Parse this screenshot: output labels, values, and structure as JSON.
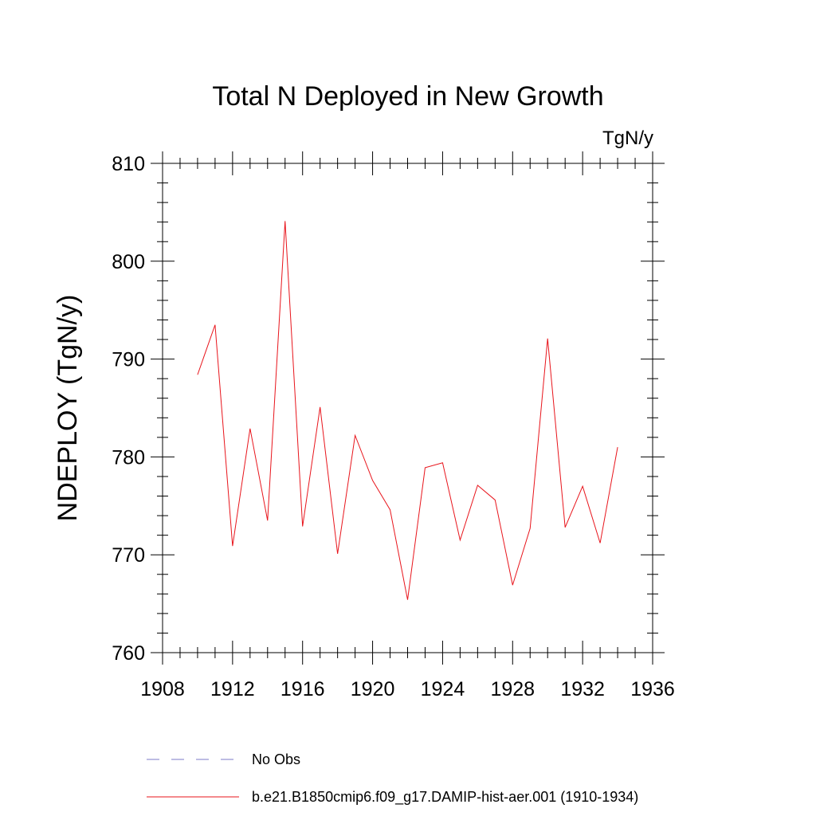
{
  "chart_data": {
    "type": "line",
    "title": "Total N Deployed in New Growth",
    "units_label": "TgN/y",
    "ylabel": "NDEPLOY  (TgN/y)",
    "xlabel": "",
    "xlim": [
      1908,
      1936
    ],
    "ylim": [
      760,
      810
    ],
    "x_ticks": [
      1908,
      1912,
      1916,
      1920,
      1924,
      1928,
      1932,
      1936
    ],
    "y_ticks": [
      760,
      770,
      780,
      790,
      800,
      810
    ],
    "grid": false,
    "legend_placement": "bottom",
    "legend": [
      {
        "label": "No Obs",
        "style": "dashed",
        "color": "#7b78c8"
      },
      {
        "label": "b.e21.B1850cmip6.f09_g17.DAMIP-hist-aer.001 (1910-1934)",
        "style": "solid",
        "color": "#e8141b"
      }
    ],
    "series": [
      {
        "color": "#e8141b",
        "x": [
          1910,
          1911,
          1912,
          1913,
          1914,
          1915,
          1916,
          1917,
          1918,
          1919,
          1920,
          1921,
          1922,
          1923,
          1924,
          1925,
          1926,
          1927,
          1928,
          1929,
          1930,
          1931,
          1932,
          1933,
          1934
        ],
        "values": [
          788.4,
          793.5,
          770.9,
          782.9,
          773.5,
          804.1,
          772.9,
          785.1,
          770.1,
          782.2,
          777.6,
          774.6,
          765.4,
          778.9,
          779.4,
          771.5,
          777.1,
          775.6,
          766.9,
          772.7,
          792.1,
          772.8,
          777.0,
          771.2,
          781.0
        ]
      }
    ]
  }
}
